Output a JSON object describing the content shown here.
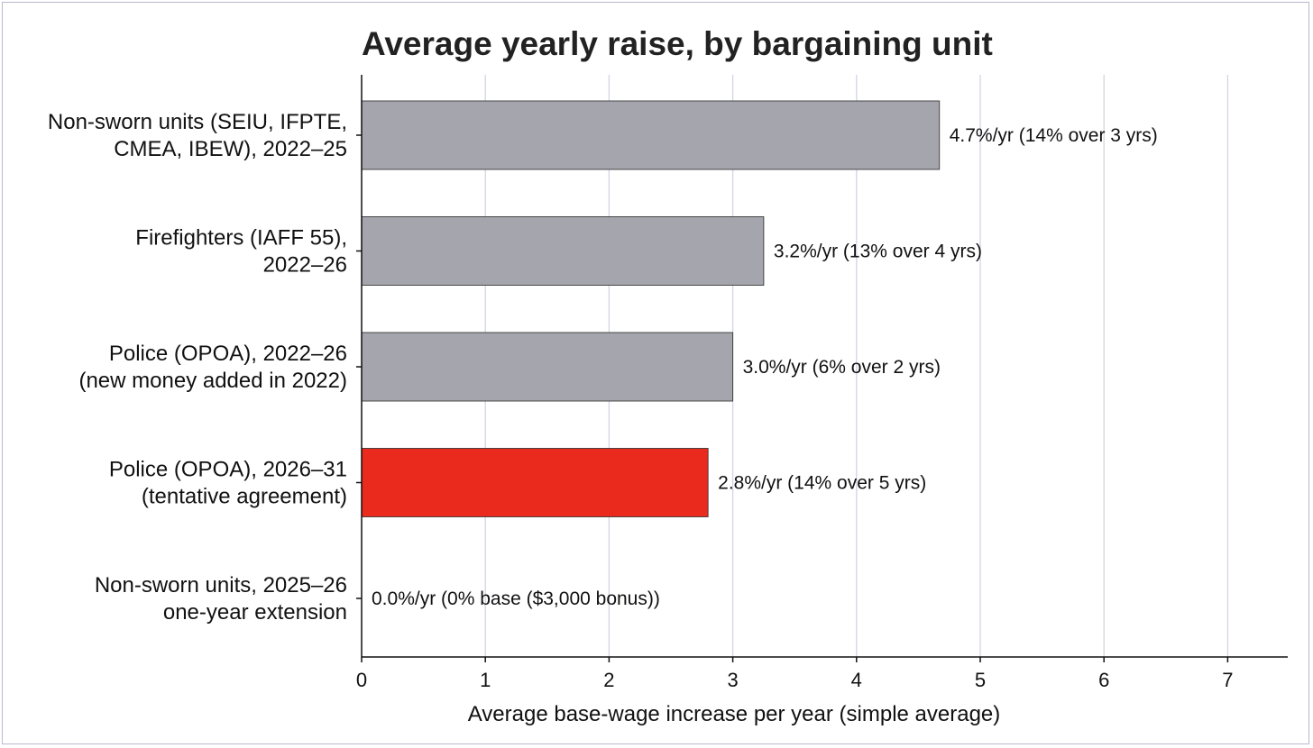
{
  "chart_data": {
    "type": "bar",
    "orientation": "horizontal",
    "title": "Average yearly raise, by bargaining unit",
    "xlabel": "Average base-wage increase per year (simple average)",
    "ylabel": "",
    "xlim": [
      0,
      7.5
    ],
    "xticks": [
      0,
      1,
      2,
      3,
      4,
      5,
      6,
      7
    ],
    "grid": "vertical",
    "categories": [
      [
        "Non-sworn units (SEIU, IFPTE,",
        "CMEA, IBEW), 2022–25"
      ],
      [
        "Firefighters (IAFF 55),",
        "2022–26"
      ],
      [
        "Police (OPOA), 2022–26",
        "(new money added in 2022)"
      ],
      [
        "Police (OPOA), 2026–31",
        "(tentative agreement)"
      ],
      [
        "Non-sworn units, 2025–26",
        "one-year extension"
      ]
    ],
    "values": [
      4.67,
      3.25,
      3.0,
      2.8,
      0.0
    ],
    "data_labels": [
      "4.7%/yr  (14% over 3 yrs)",
      "3.2%/yr  (13% over 4 yrs)",
      "3.0%/yr  (6% over 2 yrs)",
      "2.8%/yr  (14% over 5 yrs)",
      "0.0%/yr  (0% base ($3,000 bonus))"
    ],
    "bar_colors": [
      "#a5a5ad",
      "#a5a5ad",
      "#a5a5ad",
      "#ea2a1d",
      "#a5a5ad"
    ],
    "highlight_index": 3
  },
  "colors": {
    "bar_default": "#a5a5ad",
    "bar_highlight": "#ea2a1d",
    "grid": "#d4d4e4",
    "text": "#111111"
  }
}
